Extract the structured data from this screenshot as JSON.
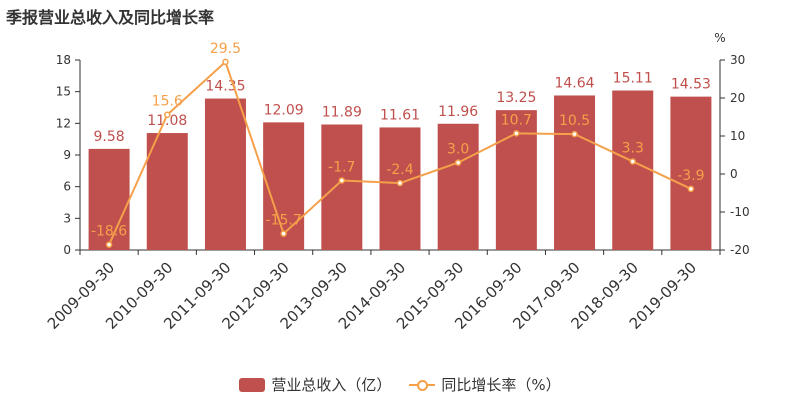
{
  "title": "季报营业总收入及同比增长率",
  "colors": {
    "bar": "#c0504d",
    "line": "#f5a04a",
    "axis": "#333333"
  },
  "chart_data": {
    "type": "bar",
    "categories": [
      "2009-09-30",
      "2010-09-30",
      "2011-09-30",
      "2012-09-30",
      "2013-09-30",
      "2014-09-30",
      "2015-09-30",
      "2016-09-30",
      "2017-09-30",
      "2018-09-30",
      "2019-09-30"
    ],
    "series": [
      {
        "name": "营业总收入（亿）",
        "type": "bar",
        "axis": "left",
        "values": [
          9.58,
          11.08,
          14.35,
          12.09,
          11.89,
          11.61,
          11.96,
          13.25,
          14.64,
          15.11,
          14.53
        ],
        "labels": [
          "9.58",
          "11.08",
          "14.35",
          "12.09",
          "11.89",
          "11.61",
          "11.96",
          "13.25",
          "14.64",
          "15.11",
          "14.53"
        ]
      },
      {
        "name": "同比增长率（%）",
        "type": "line",
        "axis": "right",
        "values": [
          -18.6,
          15.6,
          29.5,
          -15.7,
          -1.7,
          -2.4,
          3.0,
          10.7,
          10.5,
          3.3,
          -3.9
        ],
        "labels": [
          "-18.6",
          "15.6",
          "29.5",
          "-15.7",
          "-1.7",
          "-2.4",
          "3.0",
          "10.7",
          "10.5",
          "3.3",
          "-3.9"
        ]
      }
    ],
    "left_axis": {
      "ylim": [
        0,
        18
      ],
      "ticks": [
        "0",
        "3",
        "6",
        "9",
        "12",
        "15",
        "18"
      ]
    },
    "right_axis": {
      "unit": "%",
      "ylim": [
        -20,
        30
      ],
      "ticks": [
        "-20",
        "-10",
        "0",
        "10",
        "20",
        "30"
      ]
    },
    "legend": {
      "position": "bottom-center",
      "items": [
        "营业总收入（亿）",
        "同比增长率（%）"
      ]
    },
    "grid": false
  }
}
